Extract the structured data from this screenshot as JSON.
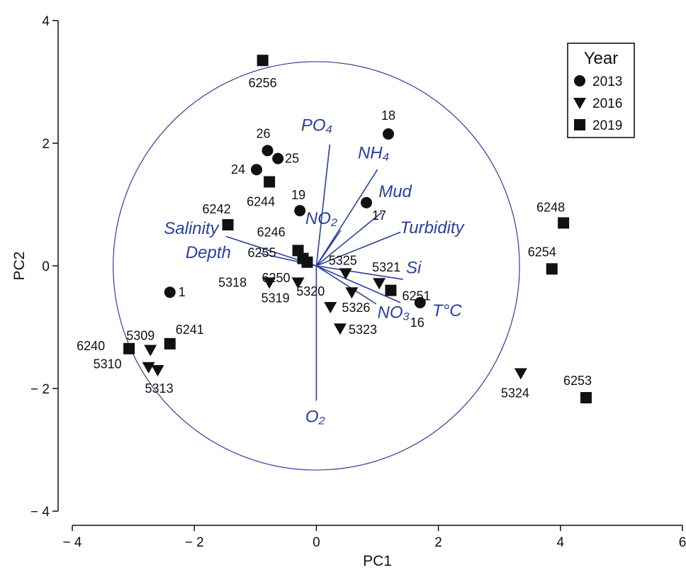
{
  "chart_data": {
    "type": "scatter",
    "xlabel": "PC1",
    "ylabel": "PC2",
    "xlim": [
      -4,
      6
    ],
    "ylim": [
      -4,
      4
    ],
    "xticks": [
      -4,
      -2,
      0,
      2,
      4,
      6
    ],
    "yticks": [
      -4,
      -2,
      0,
      2,
      4
    ],
    "xtick_labels": [
      "− 4",
      "− 2",
      "0",
      "2",
      "4",
      "6"
    ],
    "ytick_labels": [
      "− 4",
      "− 2",
      "0",
      "2",
      "4"
    ],
    "grid": false,
    "legend": {
      "title": "Year",
      "position": "top-right",
      "entries": [
        {
          "label": "2013",
          "marker": "circle"
        },
        {
          "label": "2016",
          "marker": "triangle-down"
        },
        {
          "label": "2019",
          "marker": "square"
        }
      ]
    },
    "circle": {
      "center": [
        0,
        0
      ],
      "radius": 3.33,
      "color": "#2b3f9c"
    },
    "vector_color": "#2b3f9c",
    "vectors": [
      {
        "name": "PO₄",
        "x": 0.22,
        "y": 1.98
      },
      {
        "name": "NH₄",
        "x": 1.0,
        "y": 1.57
      },
      {
        "name": "Mud",
        "x": 1.07,
        "y": 0.87
      },
      {
        "name": "NO₂",
        "x": 0.4,
        "y": 0.58
      },
      {
        "name": "Turbidity",
        "x": 1.38,
        "y": 0.55
      },
      {
        "name": "Salinity",
        "x": -1.48,
        "y": 0.48
      },
      {
        "name": "Depth",
        "x": -0.95,
        "y": 0.21
      },
      {
        "name": "Si",
        "x": 1.42,
        "y": -0.22
      },
      {
        "name": "NO₃",
        "x": 0.98,
        "y": -0.62
      },
      {
        "name": "T°C",
        "x": 1.38,
        "y": -0.6
      },
      {
        "name": "O₂",
        "x": 0.0,
        "y": -2.2
      }
    ],
    "series": [
      {
        "name": "2013",
        "marker": "circle",
        "points": [
          {
            "label": "18",
            "x": 1.18,
            "y": 2.15
          },
          {
            "label": "26",
            "x": -0.8,
            "y": 1.88
          },
          {
            "label": "25",
            "x": -0.63,
            "y": 1.75
          },
          {
            "label": "24",
            "x": -0.98,
            "y": 1.57
          },
          {
            "label": "19",
            "x": -0.27,
            "y": 0.9
          },
          {
            "label": "17",
            "x": 0.82,
            "y": 1.03
          },
          {
            "label": "1",
            "x": -2.4,
            "y": -0.43
          },
          {
            "label": "16",
            "x": 1.7,
            "y": -0.6
          }
        ]
      },
      {
        "name": "2016",
        "marker": "triangle-down",
        "points": [
          {
            "label": "5325",
            "x": 0.48,
            "y": -0.12
          },
          {
            "label": "5321",
            "x": 1.03,
            "y": -0.28
          },
          {
            "label": "5318",
            "x": -0.77,
            "y": -0.27
          },
          {
            "label": "5319",
            "x": -0.3,
            "y": -0.27
          },
          {
            "label": "5320",
            "x": 0.23,
            "y": -0.67
          },
          {
            "label": "5326",
            "x": 0.58,
            "y": -0.43
          },
          {
            "label": "5323",
            "x": 0.39,
            "y": -1.02
          },
          {
            "label": "5309",
            "x": -2.72,
            "y": -1.37
          },
          {
            "label": "5310",
            "x": -2.75,
            "y": -1.65
          },
          {
            "label": "5313",
            "x": -2.6,
            "y": -1.7
          },
          {
            "label": "5324",
            "x": 3.35,
            "y": -1.75
          }
        ]
      },
      {
        "name": "2019",
        "marker": "square",
        "points": [
          {
            "label": "6256",
            "x": -0.88,
            "y": 3.35
          },
          {
            "label": "6244",
            "x": -0.77,
            "y": 1.37
          },
          {
            "label": "6242",
            "x": -1.45,
            "y": 0.67
          },
          {
            "label": "6246",
            "x": -0.3,
            "y": 0.25
          },
          {
            "label": "6255",
            "x": -0.22,
            "y": 0.12
          },
          {
            "label": "6250",
            "x": -0.15,
            "y": 0.06
          },
          {
            "label": "6251",
            "x": 1.22,
            "y": -0.4
          },
          {
            "label": "6248",
            "x": 4.05,
            "y": 0.7
          },
          {
            "label": "6254",
            "x": 3.86,
            "y": -0.05
          },
          {
            "label": "6253",
            "x": 4.42,
            "y": -2.15
          },
          {
            "label": "6240",
            "x": -3.07,
            "y": -1.35
          },
          {
            "label": "6241",
            "x": -2.4,
            "y": -1.27
          }
        ]
      }
    ]
  }
}
